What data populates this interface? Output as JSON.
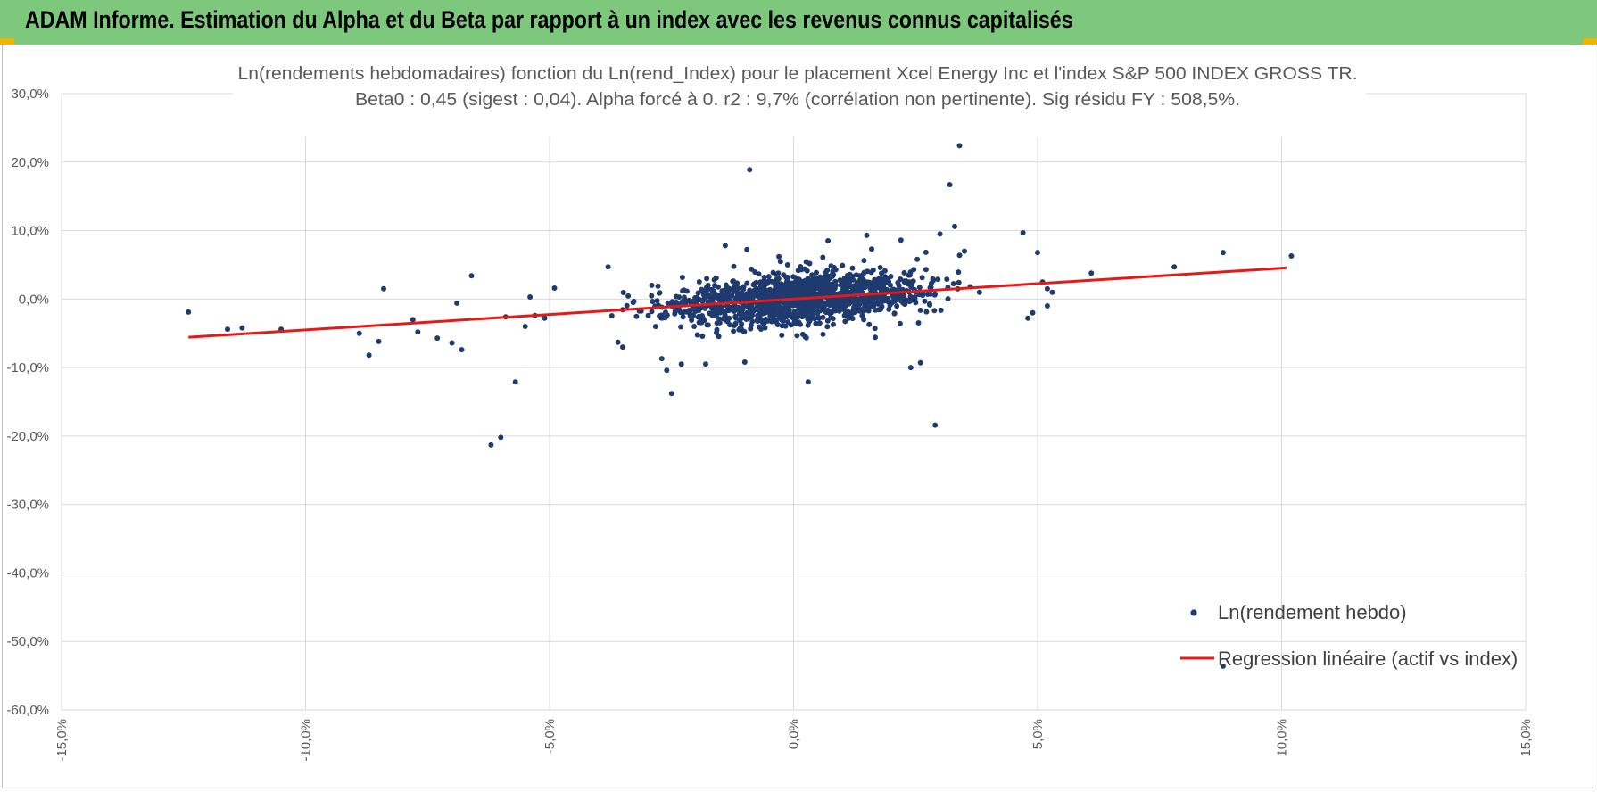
{
  "banner": {
    "title": "ADAM Informe. Estimation du Alpha et du Beta par rapport à un index avec les revenus connus capitalisés"
  },
  "colors": {
    "banner_bg": "#7dc87d",
    "corner_accent": "#f0b400",
    "points": "#1f3a6e",
    "regression": "#e61919",
    "grid": "#d9d9d9"
  },
  "chart_data": {
    "type": "scatter",
    "title_line1": "Ln(rendements hebdomadaires) fonction du Ln(rend_Index) pour le placement Xcel Energy Inc et l'index S&P 500 INDEX GROSS TR.",
    "title_line2": "Beta0 : 0,45  (sigest : 0,04). Alpha forcé à 0. r2 : 9,7% (corrélation non pertinente). Sig résidu FY : 508,5%.",
    "xlim": [
      -0.15,
      0.15
    ],
    "ylim": [
      -0.6,
      0.3
    ],
    "x_ticks": [
      "-15,0%",
      "-10,0%",
      "-5,0%",
      "0,0%",
      "5,0%",
      "10,0%",
      "15,0%"
    ],
    "y_ticks": [
      "30,0%",
      "20,0%",
      "10,0%",
      "0,0%",
      "-10,0%",
      "-20,0%",
      "-30,0%",
      "-40,0%",
      "-50,0%",
      "-60,0%"
    ],
    "grid": true,
    "legend_position": "bottom-right",
    "series": [
      {
        "name": "Ln(rendement hebdo)",
        "type": "scatter",
        "outliers": [
          [
            -0.124,
            -0.019
          ],
          [
            -0.116,
            -0.044
          ],
          [
            -0.113,
            -0.042
          ],
          [
            -0.105,
            -0.044
          ],
          [
            -0.089,
            -0.05
          ],
          [
            -0.087,
            -0.082
          ],
          [
            -0.085,
            -0.062
          ],
          [
            -0.084,
            0.015
          ],
          [
            -0.078,
            -0.03
          ],
          [
            -0.077,
            -0.048
          ],
          [
            -0.073,
            -0.057
          ],
          [
            -0.07,
            -0.064
          ],
          [
            -0.069,
            -0.006
          ],
          [
            -0.068,
            -0.074
          ],
          [
            -0.066,
            0.034
          ],
          [
            -0.062,
            -0.213
          ],
          [
            -0.06,
            -0.202
          ],
          [
            -0.059,
            -0.026
          ],
          [
            -0.057,
            -0.121
          ],
          [
            -0.055,
            -0.04
          ],
          [
            -0.054,
            0.003
          ],
          [
            -0.053,
            -0.024
          ],
          [
            -0.051,
            -0.028
          ],
          [
            -0.049,
            0.016
          ],
          [
            -0.025,
            -0.138
          ],
          [
            -0.027,
            -0.087
          ],
          [
            -0.026,
            -0.104
          ],
          [
            -0.023,
            -0.095
          ],
          [
            -0.036,
            -0.063
          ],
          [
            -0.035,
            -0.07
          ],
          [
            -0.038,
            0.047
          ],
          [
            -0.018,
            -0.095
          ],
          [
            -0.009,
            0.189
          ],
          [
            -0.01,
            -0.092
          ],
          [
            0.003,
            -0.121
          ],
          [
            0.024,
            -0.1
          ],
          [
            0.026,
            -0.093
          ],
          [
            0.029,
            -0.184
          ],
          [
            0.03,
            0.095
          ],
          [
            0.032,
            0.167
          ],
          [
            0.033,
            0.106
          ],
          [
            0.034,
            0.064
          ],
          [
            0.035,
            0.07
          ],
          [
            0.034,
            0.224
          ],
          [
            0.047,
            0.097
          ],
          [
            0.048,
            -0.028
          ],
          [
            0.049,
            -0.02
          ],
          [
            0.05,
            0.068
          ],
          [
            0.051,
            0.025
          ],
          [
            0.052,
            0.015
          ],
          [
            0.052,
            -0.01
          ],
          [
            0.053,
            0.01
          ],
          [
            0.061,
            0.038
          ],
          [
            0.078,
            0.047
          ],
          [
            0.088,
            0.068
          ],
          [
            0.102,
            0.063
          ],
          [
            0.088,
            -0.536
          ],
          [
            0.015,
            0.093
          ],
          [
            0.016,
            0.073
          ],
          [
            0.022,
            0.086
          ],
          [
            -0.014,
            0.078
          ],
          [
            -0.003,
            0.062
          ],
          [
            0.006,
            0.061
          ]
        ],
        "core_cluster": {
          "count": 1500,
          "x_mean": 0.001,
          "x_sd": 0.017,
          "y_mean": 0.0,
          "y_sd": 0.022,
          "beta": 0.45
        }
      },
      {
        "name": "Regression linéaire (actif vs index)",
        "type": "line",
        "x": [
          -0.124,
          0.101
        ],
        "y": [
          -0.0558,
          0.0455
        ]
      }
    ]
  }
}
